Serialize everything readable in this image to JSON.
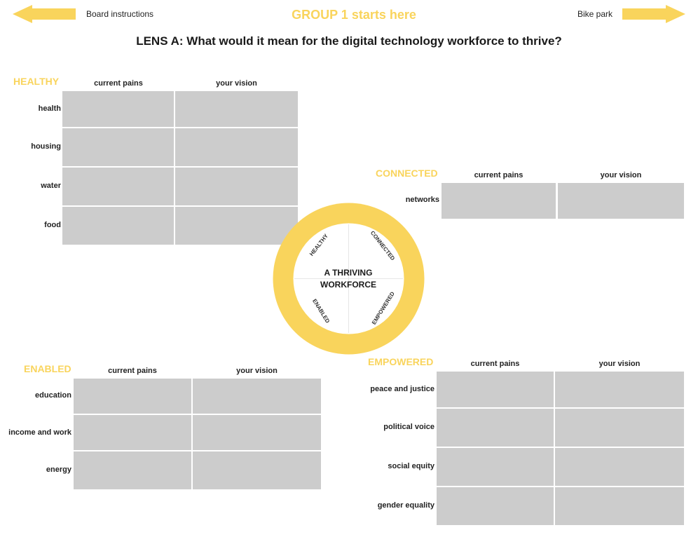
{
  "nav": {
    "board_instructions": "Board instructions",
    "bike_park": "Bike park",
    "arrow_left_icon": "arrow-left",
    "arrow_right_icon": "arrow-right"
  },
  "header": {
    "group_title": "GROUP 1 starts here",
    "lens_title": "LENS A: What would it mean for the digital technology workforce to thrive?"
  },
  "colors": {
    "accent_yellow": "#f9d45c",
    "cell_grey": "#cccccc"
  },
  "columns": {
    "current_pains": "current pains",
    "your_vision": "your vision"
  },
  "sections": {
    "healthy": {
      "title": "HEALTHY",
      "rows": [
        "health",
        "housing",
        "water",
        "food"
      ]
    },
    "connected": {
      "title": "CONNECTED",
      "rows": [
        "networks"
      ]
    },
    "enabled": {
      "title": "ENABLED",
      "rows": [
        "education",
        "income and work",
        "energy"
      ]
    },
    "empowered": {
      "title": "EMPOWERED",
      "rows": [
        "peace and justice",
        "political voice",
        "social equity",
        "gender equality"
      ]
    }
  },
  "wheel": {
    "center_line1": "A THRIVING",
    "center_line2": "WORKFORCE",
    "healthy": "HEALTHY",
    "connected": "CONNECTED",
    "enabled": "ENABLED",
    "empowered": "EMPOWERED"
  }
}
